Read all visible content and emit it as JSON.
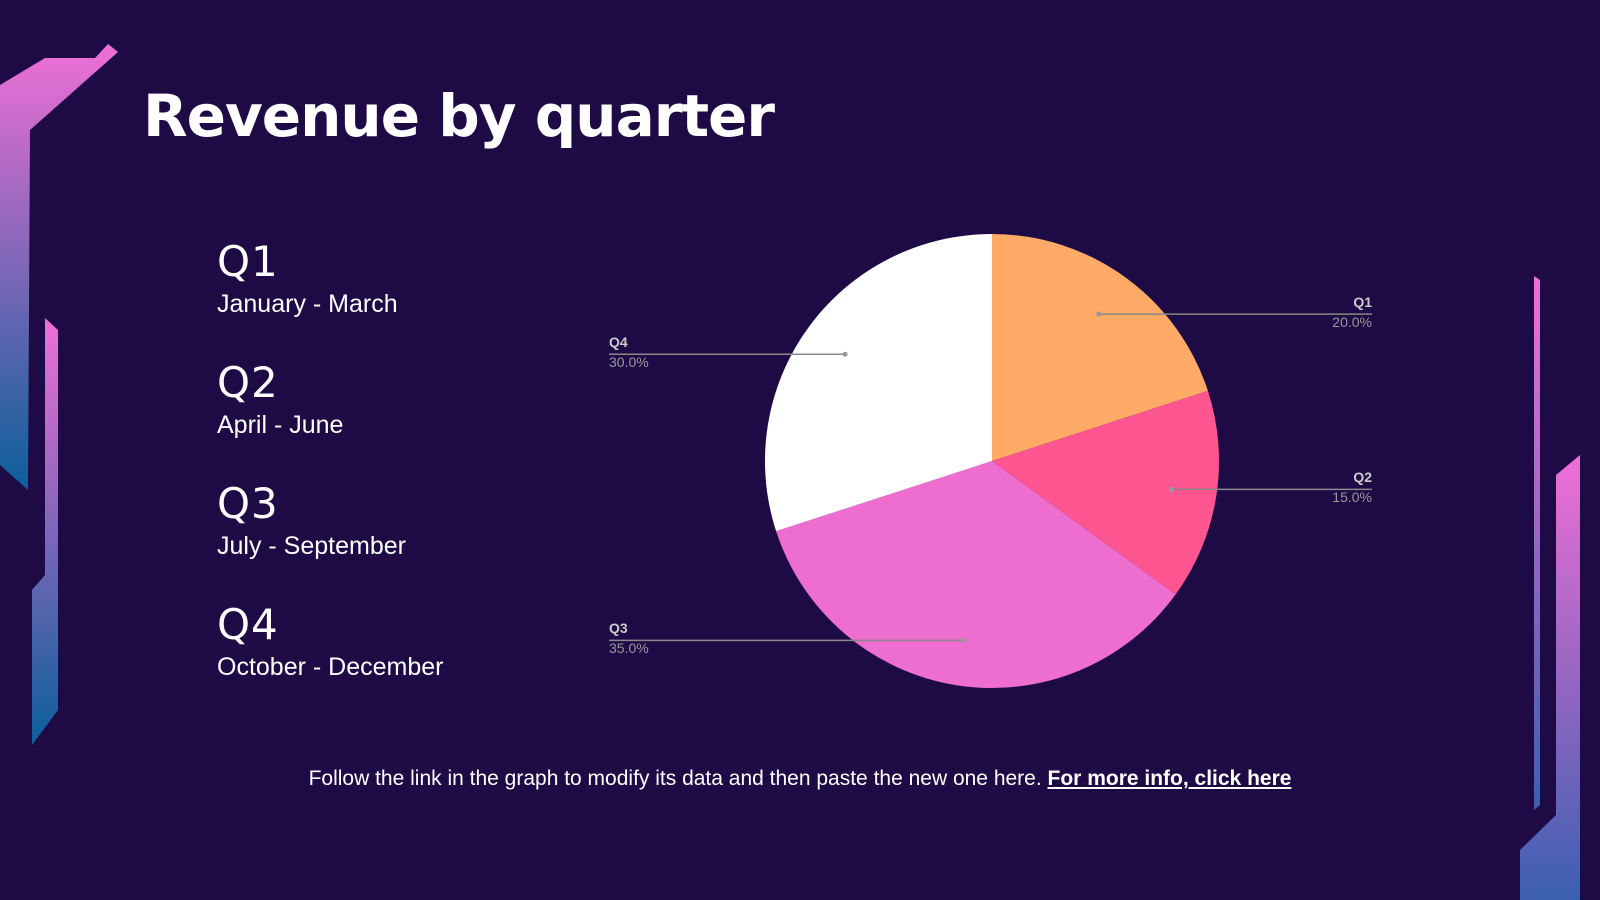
{
  "chart_data": {
    "type": "pie",
    "title": "Revenue by quarter",
    "categories": [
      "Q1",
      "Q2",
      "Q3",
      "Q4"
    ],
    "values": [
      20,
      15,
      35,
      30
    ],
    "value_labels": [
      "20.0%",
      "15.0%",
      "35.0%",
      "30.0%"
    ],
    "colors": [
      "#ffaa66",
      "#ff5590",
      "#ee6ed0",
      "#ffffff"
    ]
  },
  "sidebar": [
    {
      "heading": "Q1",
      "text": "January - March"
    },
    {
      "heading": "Q2",
      "text": "April - June"
    },
    {
      "heading": "Q3",
      "text": "July - September"
    },
    {
      "heading": "Q4",
      "text": "October - December"
    }
  ],
  "footer": {
    "text": "Follow the link in the graph to modify its data and then paste the new one here.",
    "link": "For more info, click here"
  }
}
